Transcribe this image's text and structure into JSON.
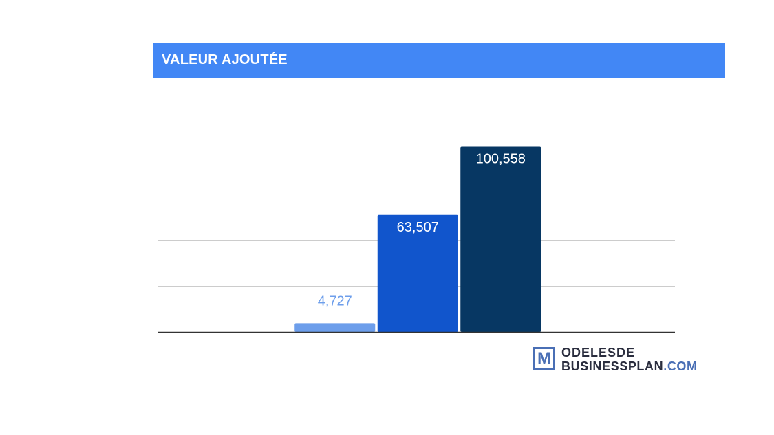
{
  "header": {
    "title": "VALEUR AJOUTÉE"
  },
  "chart_data": {
    "type": "bar",
    "title": "VALEUR AJOUTÉE",
    "categories": [
      "",
      "",
      "",
      "",
      "",
      ""
    ],
    "values": [
      null,
      4727,
      63507,
      100558,
      null,
      null
    ],
    "data_labels": [
      "",
      "4,727",
      "63,507",
      "100,558",
      "",
      ""
    ],
    "bar_colors": [
      "",
      "#6d9eeb",
      "#1155cc",
      "#073763",
      "",
      ""
    ],
    "label_colors": [
      "",
      "#6d9eeb",
      "#ffffff",
      "#ffffff",
      "",
      ""
    ],
    "ylim": [
      0,
      125000
    ],
    "grid": true,
    "legend": "none"
  },
  "logo": {
    "mark": "M",
    "line1": "ODELESDE",
    "line2_main": "BUSINESSPLAN",
    "line2_suffix": ".COM"
  }
}
